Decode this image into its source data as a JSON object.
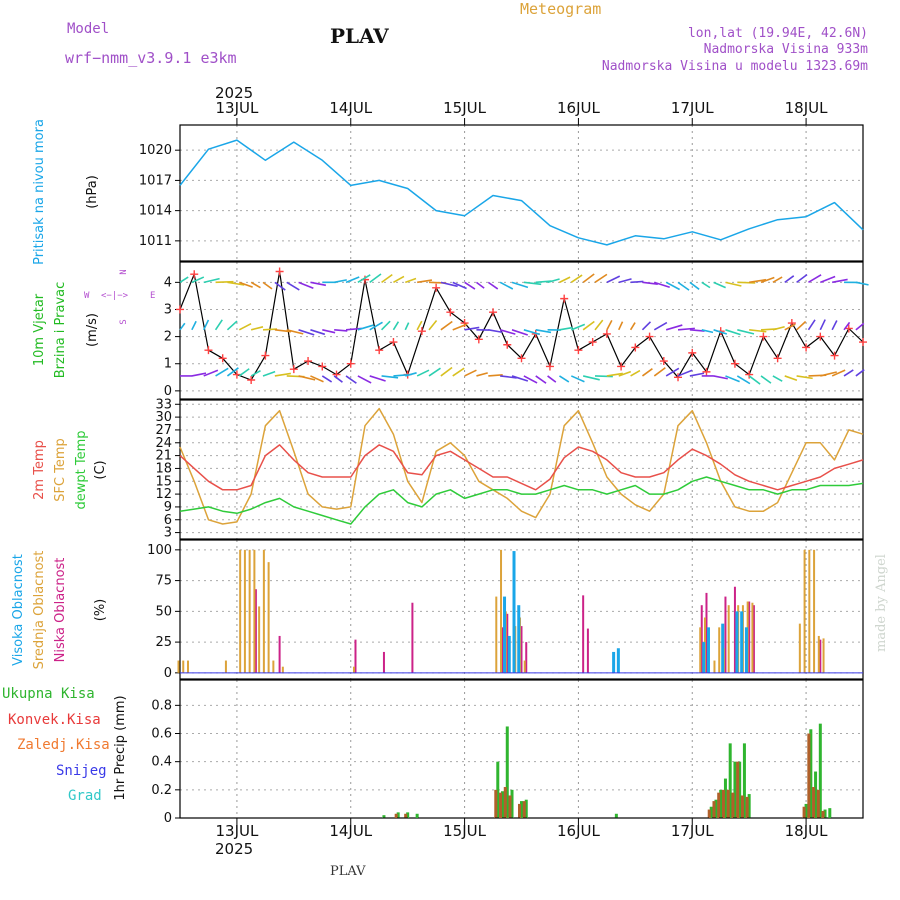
{
  "header": {
    "model_label": "Model",
    "model_name": "wrf−nmm_v3.9.1  e3km",
    "station": "PLAV",
    "meteogram": "Meteogram",
    "lonlat": "lon,lat (19.94E, 42.6N)",
    "elev": "Nadmorska Visina 933m",
    "elev_model": "Nadmorska Visina u modelu 1323.69m",
    "footer_station": "PLAV",
    "watermark": "made by Angel",
    "year": "2025"
  },
  "colors": {
    "pressure": "#1aa6e8",
    "t2m": "#e8504a",
    "tsfc": "#dca33a",
    "dew": "#2fcb3a",
    "high_cloud": "#1aa6e8",
    "mid_cloud": "#dca33a",
    "low_cloud": "#cc2288",
    "total_precip": "#2fb52f",
    "conv_precip": "#e83a3a",
    "fz_precip": "#f07a30",
    "snow": "#3a3ae8",
    "hail": "#30c8c8",
    "wind_label": "#22bb22",
    "compass": "#b450d0",
    "model_text": "#a050c8"
  },
  "chart_data": [
    {
      "type": "line",
      "id": "pressure",
      "title": "Pritisak na nivou mora",
      "ylabel": "(hPa)",
      "ylim": [
        1009,
        1022.5
      ],
      "yticks": [
        1011,
        1014,
        1017,
        1020
      ],
      "ytick_labels": [
        "1011",
        "1014",
        "1017",
        "1020"
      ],
      "series": [
        {
          "name": "MSLP",
          "x": [
            0,
            6,
            12,
            18,
            24,
            30,
            36,
            42,
            48,
            54,
            60,
            66,
            72,
            78,
            84,
            90,
            96,
            102,
            108,
            114,
            120,
            126,
            132,
            138,
            144
          ],
          "values": [
            1016.5,
            1020.1,
            1021.0,
            1019.0,
            1020.8,
            1019.0,
            1016.5,
            1017.0,
            1016.2,
            1014.0,
            1013.5,
            1015.5,
            1015.0,
            1012.5,
            1011.3,
            1010.6,
            1011.5,
            1011.2,
            1011.9,
            1011.1,
            1012.2,
            1013.1,
            1013.4,
            1014.8,
            1012.1
          ]
        }
      ]
    },
    {
      "type": "line",
      "id": "wind",
      "title": "10m Vjetar",
      "title2": "Brzina i Pravac",
      "ylabel": "(m/s)",
      "ylim": [
        -0.3,
        4.75
      ],
      "yticks": [
        0,
        1,
        2,
        3,
        4
      ],
      "ytick_labels": [
        "0",
        "1",
        "2",
        "3",
        "4"
      ],
      "compass": {
        "west": "W",
        "east": "E",
        "arrows": "<−|−>",
        "north": "N",
        "south": "S"
      },
      "series": [
        {
          "name": "Wind speed",
          "x": [
            0,
            3,
            6,
            9,
            12,
            15,
            18,
            21,
            24,
            27,
            30,
            33,
            36,
            39,
            42,
            45,
            48,
            51,
            54,
            57,
            60,
            63,
            66,
            69,
            72,
            75,
            78,
            81,
            84,
            87,
            90,
            93,
            96,
            99,
            102,
            105,
            108,
            111,
            114,
            117,
            120,
            123,
            126,
            129,
            132,
            135,
            138,
            141,
            144
          ],
          "values": [
            3.0,
            4.3,
            1.5,
            1.2,
            0.6,
            0.4,
            1.3,
            4.4,
            0.8,
            1.1,
            0.9,
            0.6,
            1.0,
            4.1,
            1.5,
            1.8,
            0.6,
            2.2,
            3.8,
            2.9,
            2.5,
            1.9,
            2.9,
            1.7,
            1.2,
            2.1,
            0.9,
            3.4,
            1.5,
            1.8,
            2.1,
            0.9,
            1.6,
            2.0,
            1.1,
            0.5,
            1.4,
            0.7,
            2.2,
            1.0,
            0.6,
            2.0,
            1.2,
            2.5,
            1.6,
            2.0,
            1.3,
            2.3,
            1.8
          ]
        }
      ]
    },
    {
      "type": "line",
      "id": "temperature",
      "title": "2m Temp",
      "title2": "SFC Temp",
      "title3": "dewpt Temp",
      "ylabel": "(C)",
      "ylim": [
        1.5,
        34
      ],
      "yticks": [
        3,
        6,
        9,
        12,
        15,
        18,
        21,
        24,
        27,
        30,
        33
      ],
      "ytick_labels": [
        "3",
        "6",
        "9",
        "12",
        "15",
        "18",
        "21",
        "24",
        "27",
        "30",
        "33"
      ],
      "series": [
        {
          "name": "2m Temp",
          "x": [
            0,
            3,
            6,
            9,
            12,
            15,
            18,
            21,
            24,
            27,
            30,
            33,
            36,
            39,
            42,
            45,
            48,
            51,
            54,
            57,
            60,
            63,
            66,
            69,
            72,
            75,
            78,
            81,
            84,
            87,
            90,
            93,
            96,
            99,
            102,
            105,
            108,
            111,
            114,
            117,
            120,
            123,
            126,
            129,
            132,
            135,
            138,
            141,
            144
          ],
          "values": [
            21,
            18,
            15,
            13,
            13,
            14,
            21,
            23.5,
            20,
            17,
            16,
            16,
            16,
            21,
            23.5,
            22,
            17,
            16.5,
            21,
            22,
            20,
            18,
            16,
            16,
            14.5,
            13,
            15.5,
            20.5,
            23,
            22,
            20,
            17,
            16,
            16,
            17,
            20,
            22.5,
            21,
            19,
            16.5,
            15,
            14,
            13,
            14,
            15,
            16,
            18,
            19,
            20
          ]
        },
        {
          "name": "SFC Temp",
          "x": [
            0,
            3,
            6,
            9,
            12,
            15,
            18,
            21,
            24,
            27,
            30,
            33,
            36,
            39,
            42,
            45,
            48,
            51,
            54,
            57,
            60,
            63,
            66,
            69,
            72,
            75,
            78,
            81,
            84,
            87,
            90,
            93,
            96,
            99,
            102,
            105,
            108,
            111,
            114,
            117,
            120,
            123,
            126,
            129,
            132,
            135,
            138,
            141,
            144
          ],
          "values": [
            23,
            15,
            6,
            5,
            5.5,
            12,
            28,
            31.5,
            22,
            12,
            9,
            8.5,
            9,
            28,
            32,
            26,
            15,
            10,
            22,
            24,
            21,
            15,
            13,
            11,
            8,
            6.5,
            12,
            28,
            31.5,
            24,
            16,
            12,
            9.5,
            8,
            12,
            28,
            31.5,
            24,
            15,
            9,
            8,
            8,
            10,
            17,
            24,
            24,
            20,
            27,
            26
          ]
        },
        {
          "name": "dewpt Temp",
          "x": [
            0,
            3,
            6,
            9,
            12,
            15,
            18,
            21,
            24,
            27,
            30,
            33,
            36,
            39,
            42,
            45,
            48,
            51,
            54,
            57,
            60,
            63,
            66,
            69,
            72,
            75,
            78,
            81,
            84,
            87,
            90,
            93,
            96,
            99,
            102,
            105,
            108,
            111,
            114,
            117,
            120,
            123,
            126,
            129,
            132,
            135,
            138,
            141,
            144
          ],
          "values": [
            8,
            8.5,
            9,
            8,
            7.5,
            8.5,
            10,
            11,
            9,
            8,
            7,
            6,
            5,
            9,
            12,
            13,
            10,
            9,
            12,
            13,
            11,
            12,
            13,
            13,
            12,
            12,
            13,
            14,
            13,
            13,
            12,
            13,
            14,
            12,
            12,
            13,
            15,
            16,
            15,
            14,
            13,
            13,
            12,
            13,
            13,
            14,
            14,
            14,
            14.5
          ]
        }
      ]
    },
    {
      "type": "bar",
      "id": "clouds",
      "title": "Visoka Oblacnost",
      "title2": "Srednja Oblacnost",
      "title3": "Niska Oblacnost",
      "ylabel": "(%)",
      "ylim": [
        -5,
        108
      ],
      "yticks": [
        0,
        25,
        50,
        75,
        100
      ],
      "ytick_labels": [
        "0",
        "25",
        "50",
        "75",
        "100"
      ],
      "series": [
        {
          "name": "Niska",
          "x": [
            16,
            21,
            37,
            43,
            49,
            68,
            69,
            72,
            73,
            85,
            86,
            110,
            111,
            115,
            117,
            120,
            121,
            135
          ],
          "values": [
            68,
            30,
            27,
            17,
            57,
            37,
            48,
            38,
            25,
            63,
            36,
            55,
            65,
            62,
            70,
            58,
            55,
            27
          ]
        },
        {
          "name": "Srednja",
          "x": [
            0,
            1,
            2,
            10,
            13,
            14,
            15,
            16,
            17,
            18,
            19,
            20,
            22,
            37,
            67,
            68,
            69,
            71,
            72,
            73,
            110,
            111,
            113,
            114,
            115,
            116,
            118,
            119,
            120,
            121,
            131,
            132,
            133,
            134,
            135,
            136
          ],
          "values": [
            10,
            10,
            10,
            10,
            100,
            100,
            100,
            100,
            54,
            100,
            90,
            10,
            5,
            5,
            62,
            100,
            50,
            38,
            45,
            10,
            37,
            45,
            10,
            37,
            20,
            55,
            55,
            55,
            58,
            57,
            40,
            100,
            100,
            100,
            30,
            28
          ]
        },
        {
          "name": "Visoka",
          "x": [
            68,
            69,
            70,
            71,
            91,
            92,
            110,
            111,
            114,
            117,
            118,
            119
          ],
          "values": [
            62,
            30,
            99,
            55,
            17,
            20,
            25,
            37,
            40,
            50,
            50,
            37
          ]
        }
      ]
    },
    {
      "type": "bar",
      "id": "precip",
      "title": "1hr Precip (mm)",
      "ylim": [
        0,
        0.98
      ],
      "yticks": [
        0,
        0.2,
        0.4,
        0.6,
        0.8
      ],
      "ytick_labels": [
        "0",
        "0.2",
        "0.4",
        "0.6",
        "0.8"
      ],
      "legend": [
        "Ukupna  Kisa",
        "Konvek.Kisa",
        "Zaledj.Kisa",
        "Snijeg",
        "Grad"
      ],
      "series": [
        {
          "name": "Ukupna Kisa",
          "x": [
            43,
            46,
            48,
            50,
            67,
            68,
            69,
            70,
            72,
            73,
            92,
            112,
            113,
            114,
            115,
            116,
            117,
            118,
            119,
            120,
            132,
            133,
            134,
            135,
            136,
            137
          ],
          "values": [
            0.02,
            0.04,
            0.04,
            0.03,
            0.4,
            0.19,
            0.65,
            0.2,
            0.12,
            0.13,
            0.03,
            0.08,
            0.13,
            0.2,
            0.28,
            0.53,
            0.4,
            0.4,
            0.53,
            0.17,
            0.1,
            0.63,
            0.33,
            0.67,
            0.06,
            0.07
          ]
        },
        {
          "name": "Konvek.Kisa",
          "x": [
            46,
            48,
            67,
            68,
            69,
            70,
            72,
            73,
            112,
            113,
            114,
            115,
            116,
            117,
            118,
            119,
            120,
            132,
            133,
            134,
            135,
            136
          ],
          "values": [
            0.03,
            0.03,
            0.2,
            0.18,
            0.22,
            0.16,
            0.1,
            0.12,
            0.06,
            0.12,
            0.18,
            0.2,
            0.2,
            0.18,
            0.4,
            0.16,
            0.15,
            0.08,
            0.6,
            0.22,
            0.2,
            0.05
          ]
        }
      ],
      "total": [
        0.02,
        0.04,
        0.04,
        0.03,
        0.4,
        0.19,
        0.65,
        0.2,
        0.12,
        0.13,
        0.03,
        0.08,
        0.13,
        0.2,
        0.28,
        0.53,
        0.4,
        0.4,
        0.53,
        0.17,
        0.1,
        0.63,
        0.33,
        0.67,
        0.06,
        0.07
      ]
    }
  ],
  "time_axis": {
    "start_hour_offset": 12,
    "day_labels": [
      "13JUL",
      "14JUL",
      "15JUL",
      "16JUL",
      "17JUL",
      "18JUL"
    ],
    "day_hours": [
      12,
      36,
      60,
      84,
      108,
      132
    ],
    "span_hours": 144
  }
}
